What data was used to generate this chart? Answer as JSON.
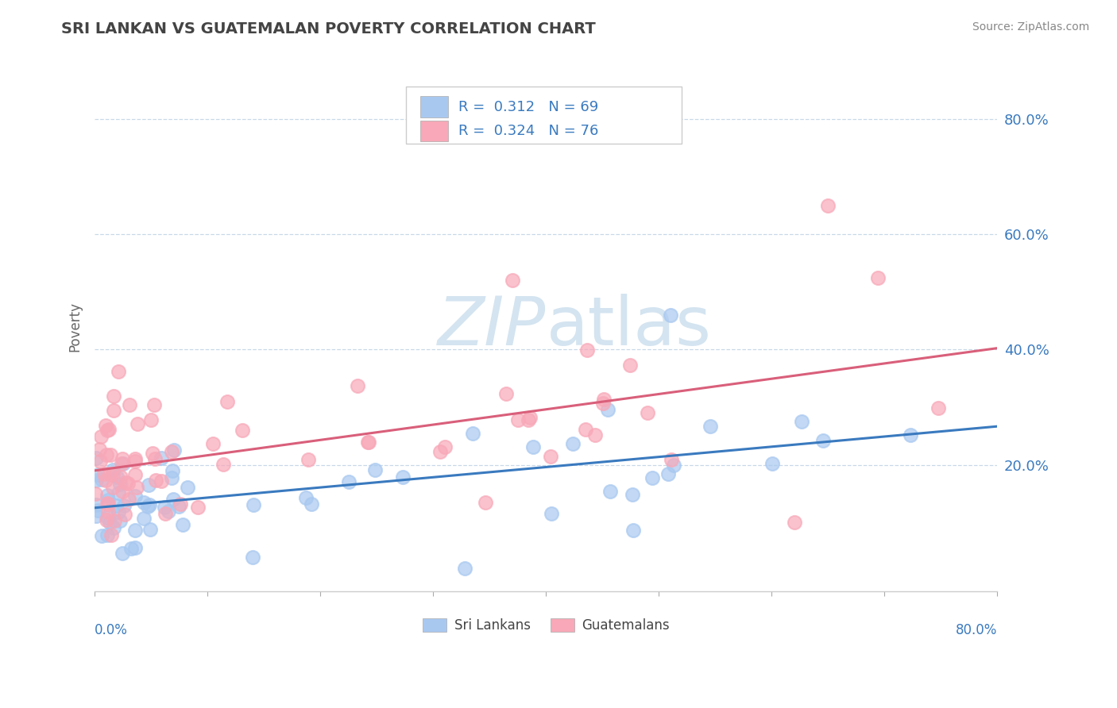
{
  "title": "SRI LANKAN VS GUATEMALAN POVERTY CORRELATION CHART",
  "source": "Source: ZipAtlas.com",
  "ylabel": "Poverty",
  "xlim": [
    0.0,
    0.8
  ],
  "ylim": [
    -0.02,
    0.9
  ],
  "sri_lankan_color": "#a8c8f0",
  "guatemalan_color": "#f8a8b8",
  "sri_lankan_line_color": "#3a7abf",
  "guatemalan_line_color": "#d95f7a",
  "background_color": "#ffffff",
  "grid_color": "#c8d8e8",
  "watermark_color": "#d4e4f0",
  "title_color": "#444444",
  "source_color": "#888888",
  "tick_label_color": "#3a7abf",
  "axis_label_color": "#666666",
  "legend_border_color": "#cccccc",
  "bottom_legend_color": "#444444"
}
